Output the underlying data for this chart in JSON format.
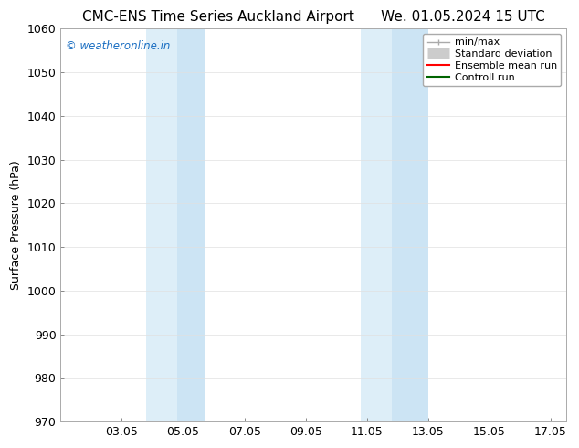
{
  "title_left": "CMC-ENS Time Series Auckland Airport",
  "title_right": "We. 01.05.2024 15 UTC",
  "ylabel": "Surface Pressure (hPa)",
  "ylim": [
    970,
    1060
  ],
  "yticks": [
    970,
    980,
    990,
    1000,
    1010,
    1020,
    1030,
    1040,
    1050,
    1060
  ],
  "xlim": [
    1.0,
    17.5
  ],
  "xtick_labels": [
    "03.05",
    "05.05",
    "07.05",
    "09.05",
    "11.05",
    "13.05",
    "15.05",
    "17.05"
  ],
  "xtick_positions": [
    3,
    5,
    7,
    9,
    11,
    13,
    15,
    17
  ],
  "shaded_regions": [
    {
      "xmin": 3.8,
      "xmax": 4.8,
      "color": "#ddeef8"
    },
    {
      "xmin": 4.8,
      "xmax": 5.7,
      "color": "#cce4f4"
    },
    {
      "xmin": 10.8,
      "xmax": 11.8,
      "color": "#ddeef8"
    },
    {
      "xmin": 11.8,
      "xmax": 13.0,
      "color": "#cce4f4"
    }
  ],
  "watermark_text": "© weatheronline.in",
  "watermark_color": "#1a6ec2",
  "background_color": "#ffffff",
  "grid_color": "#e0e0e0",
  "title_fontsize": 11,
  "axis_fontsize": 9,
  "tick_fontsize": 9,
  "legend_fontsize": 8
}
